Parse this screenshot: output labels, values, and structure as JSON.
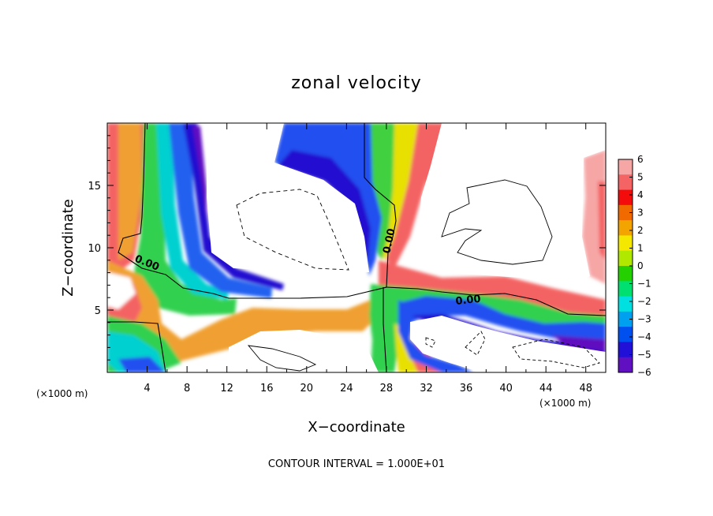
{
  "chart_data": {
    "type": "heatmap",
    "title": "zonal velocity",
    "xlabel": "X−coordinate",
    "ylabel": "Z−coordinate",
    "x_units": "(×1000 m)",
    "z_units": "(×1000 m)",
    "xlim": [
      0,
      50
    ],
    "ylim": [
      0,
      20
    ],
    "xticks": [
      4,
      8,
      12,
      16,
      20,
      24,
      28,
      32,
      36,
      40,
      44,
      48
    ],
    "yticks": [
      5,
      10,
      15
    ],
    "colorbar": {
      "ticks": [
        6,
        5,
        4,
        3,
        2,
        1,
        0,
        -1,
        -2,
        -3,
        -4,
        -5,
        -6
      ],
      "colors": [
        "#f7a6a6",
        "#f46464",
        "#f40c0c",
        "#f06a00",
        "#f4a400",
        "#f4e800",
        "#b0e800",
        "#24d000",
        "#00e070",
        "#00e0e0",
        "#00a0f0",
        "#0050f0",
        "#2010d8",
        "#6010c0"
      ]
    },
    "contour_label": "0.00",
    "note": "CONTOUR INTERVAL = 1.000E+01"
  }
}
